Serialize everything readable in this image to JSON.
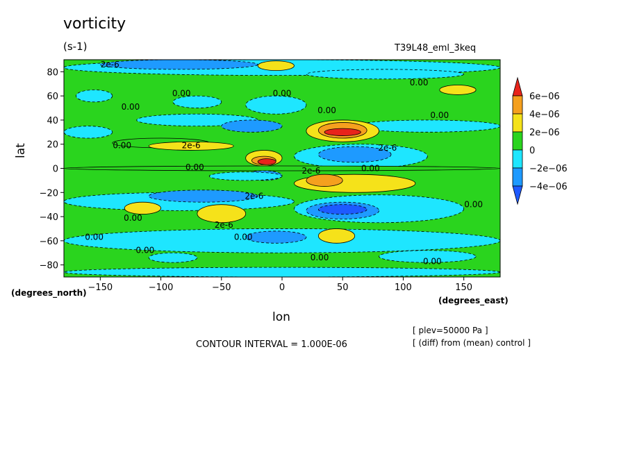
{
  "chart_data": {
    "type": "heatmap",
    "title": "vorticity",
    "units": "(s-1)",
    "run_label": "T39L48_eml_3keq",
    "xlabel": "lon",
    "ylabel": "lat",
    "x_units_label": "(degrees_east)",
    "y_units_label": "(degrees_north)",
    "xlim": [
      -180,
      180
    ],
    "ylim": [
      -90,
      90
    ],
    "x_ticks": [
      -150,
      -100,
      -50,
      0,
      50,
      100,
      150
    ],
    "x_tick_labels": [
      "−150",
      "−100",
      "−50",
      "0",
      "50",
      "100",
      "150"
    ],
    "y_ticks": [
      80,
      60,
      40,
      20,
      0,
      -20,
      -40,
      -60,
      -80
    ],
    "y_tick_labels": [
      "80",
      "60",
      "40",
      "20",
      "0",
      "−20",
      "−40",
      "−60",
      "−80"
    ],
    "colorbar": {
      "labels": [
        "6e−06",
        "4e−06",
        "2e−06",
        "0",
        "−2e−06",
        "−4e−06"
      ],
      "bins": [
        {
          "min": 6e-06,
          "max": null,
          "color": "#e8241b"
        },
        {
          "min": 4e-06,
          "max": 6e-06,
          "color": "#f5a01e"
        },
        {
          "min": 2e-06,
          "max": 4e-06,
          "color": "#f5e21a"
        },
        {
          "min": 0,
          "max": 2e-06,
          "color": "#2ad41e"
        },
        {
          "min": -2e-06,
          "max": 0,
          "color": "#1ee6ff"
        },
        {
          "min": -4e-06,
          "max": -2e-06,
          "color": "#1e9aff"
        },
        {
          "min": null,
          "max": -4e-06,
          "color": "#1e5aff"
        }
      ]
    },
    "contour_interval": "CONTOUR INTERVAL = 1.000E-06",
    "contour_labels": [
      {
        "text": "2e-6",
        "lon": -142,
        "lat": 86
      },
      {
        "text": "0.00",
        "lon": 113,
        "lat": 71
      },
      {
        "text": "0.00",
        "lon": -83,
        "lat": 62
      },
      {
        "text": "0.00",
        "lon": 0,
        "lat": 62
      },
      {
        "text": "0.00",
        "lon": -125,
        "lat": 51
      },
      {
        "text": "0.00",
        "lon": 37,
        "lat": 48
      },
      {
        "text": "0.00",
        "lon": 130,
        "lat": 44
      },
      {
        "text": "0.00",
        "lon": -132,
        "lat": 19
      },
      {
        "text": "2e-6",
        "lon": -75,
        "lat": 19
      },
      {
        "text": "2e-6",
        "lon": 87,
        "lat": 17
      },
      {
        "text": "0.00",
        "lon": -72,
        "lat": 1
      },
      {
        "text": "2e-6",
        "lon": 24,
        "lat": -2
      },
      {
        "text": "0.00",
        "lon": 73,
        "lat": 0
      },
      {
        "text": "2e-6",
        "lon": -23,
        "lat": -23
      },
      {
        "text": "0.00",
        "lon": 158,
        "lat": -30
      },
      {
        "text": "0.00",
        "lon": -123,
        "lat": -41
      },
      {
        "text": "2e-6",
        "lon": -48,
        "lat": -47
      },
      {
        "text": "0.00",
        "lon": -155,
        "lat": -57
      },
      {
        "text": "0.00",
        "lon": -32,
        "lat": -57
      },
      {
        "text": "0.00",
        "lon": -113,
        "lat": -68
      },
      {
        "text": "0.00",
        "lon": 31,
        "lat": -74
      },
      {
        "text": "0.00",
        "lon": 124,
        "lat": -77
      }
    ],
    "field": {
      "background": "#2ad41e",
      "features": [
        {
          "lon": [
            -180,
            180
          ],
          "lat": [
            77,
            90
          ],
          "value": -1e-06
        },
        {
          "lon": [
            -150,
            -20
          ],
          "lat": [
            82,
            90
          ],
          "value": -3e-06
        },
        {
          "lon": [
            20,
            150
          ],
          "lat": [
            74,
            82
          ],
          "value": -1e-06
        },
        {
          "lon": [
            -20,
            10
          ],
          "lat": [
            81,
            89
          ],
          "value": 3e-06
        },
        {
          "lon": [
            130,
            160
          ],
          "lat": [
            61,
            69
          ],
          "value": 3e-06
        },
        {
          "lon": [
            -170,
            -140
          ],
          "lat": [
            55,
            65
          ],
          "value": -1e-06
        },
        {
          "lon": [
            -90,
            -50
          ],
          "lat": [
            50,
            60
          ],
          "value": -1e-06
        },
        {
          "lon": [
            -30,
            20
          ],
          "lat": [
            45,
            60
          ],
          "value": -1e-06
        },
        {
          "lon": [
            -120,
            -20
          ],
          "lat": [
            35,
            45
          ],
          "value": -1e-06
        },
        {
          "lon": [
            60,
            180
          ],
          "lat": [
            30,
            40
          ],
          "value": -1e-06
        },
        {
          "lon": [
            -180,
            -140
          ],
          "lat": [
            25,
            35
          ],
          "value": -1e-06
        },
        {
          "lon": [
            -50,
            0
          ],
          "lat": [
            30,
            40
          ],
          "value": -3e-06
        },
        {
          "lon": [
            20,
            80
          ],
          "lat": [
            22,
            40
          ],
          "value": 3e-06
        },
        {
          "lon": [
            30,
            70
          ],
          "lat": [
            25,
            38
          ],
          "value": 5e-06
        },
        {
          "lon": [
            35,
            65
          ],
          "lat": [
            27,
            33
          ],
          "value": 7e-06
        },
        {
          "lon": [
            -140,
            -60
          ],
          "lat": [
            17,
            25
          ],
          "value": 1e-06
        },
        {
          "lon": [
            -110,
            -40
          ],
          "lat": [
            15,
            22
          ],
          "value": 3e-06
        },
        {
          "lon": [
            10,
            120
          ],
          "lat": [
            0,
            20
          ],
          "value": -1e-06
        },
        {
          "lon": [
            30,
            90
          ],
          "lat": [
            5,
            18
          ],
          "value": -3e-06
        },
        {
          "lon": [
            -30,
            0
          ],
          "lat": [
            2,
            15
          ],
          "value": 3e-06
        },
        {
          "lon": [
            -25,
            -5
          ],
          "lat": [
            3,
            10
          ],
          "value": 5e-06
        },
        {
          "lon": [
            -20,
            -5
          ],
          "lat": [
            3,
            8
          ],
          "value": 7e-06
        },
        {
          "lon": [
            -180,
            180
          ],
          "lat": [
            -2,
            2
          ],
          "value": 1e-06
        },
        {
          "lon": [
            -30,
            0
          ],
          "lat": [
            -10,
            -2
          ],
          "value": -3e-06
        },
        {
          "lon": [
            -60,
            0
          ],
          "lat": [
            -10,
            -3
          ],
          "value": -1e-06
        },
        {
          "lon": [
            10,
            110
          ],
          "lat": [
            -20,
            -5
          ],
          "value": 3e-06
        },
        {
          "lon": [
            20,
            50
          ],
          "lat": [
            -15,
            -5
          ],
          "value": 5e-06
        },
        {
          "lon": [
            -180,
            10
          ],
          "lat": [
            -35,
            -20
          ],
          "value": -1e-06
        },
        {
          "lon": [
            -110,
            -20
          ],
          "lat": [
            -28,
            -18
          ],
          "value": -3e-06
        },
        {
          "lon": [
            10,
            150
          ],
          "lat": [
            -45,
            -22
          ],
          "value": -1e-06
        },
        {
          "lon": [
            20,
            80
          ],
          "lat": [
            -42,
            -28
          ],
          "value": -3e-06
        },
        {
          "lon": [
            30,
            70
          ],
          "lat": [
            -38,
            -30
          ],
          "value": -5e-06
        },
        {
          "lon": [
            -130,
            -100
          ],
          "lat": [
            -38,
            -28
          ],
          "value": 3e-06
        },
        {
          "lon": [
            -70,
            -30
          ],
          "lat": [
            -45,
            -30
          ],
          "value": 3e-06
        },
        {
          "lon": [
            -180,
            180
          ],
          "lat": [
            -70,
            -50
          ],
          "value": -1e-06
        },
        {
          "lon": [
            30,
            60
          ],
          "lat": [
            -62,
            -50
          ],
          "value": 3e-06
        },
        {
          "lon": [
            -30,
            20
          ],
          "lat": [
            -62,
            -52
          ],
          "value": -3e-06
        },
        {
          "lon": [
            -180,
            180
          ],
          "lat": [
            -90,
            -82
          ],
          "value": -1e-06
        },
        {
          "lon": [
            80,
            160
          ],
          "lat": [
            -78,
            -68
          ],
          "value": -1e-06
        },
        {
          "lon": [
            -110,
            -70
          ],
          "lat": [
            -78,
            -70
          ],
          "value": -1e-06
        }
      ]
    }
  },
  "notes": {
    "plev": "[ plev=50000 Pa ]",
    "diff": "[ (diff) from (mean) control ]"
  }
}
